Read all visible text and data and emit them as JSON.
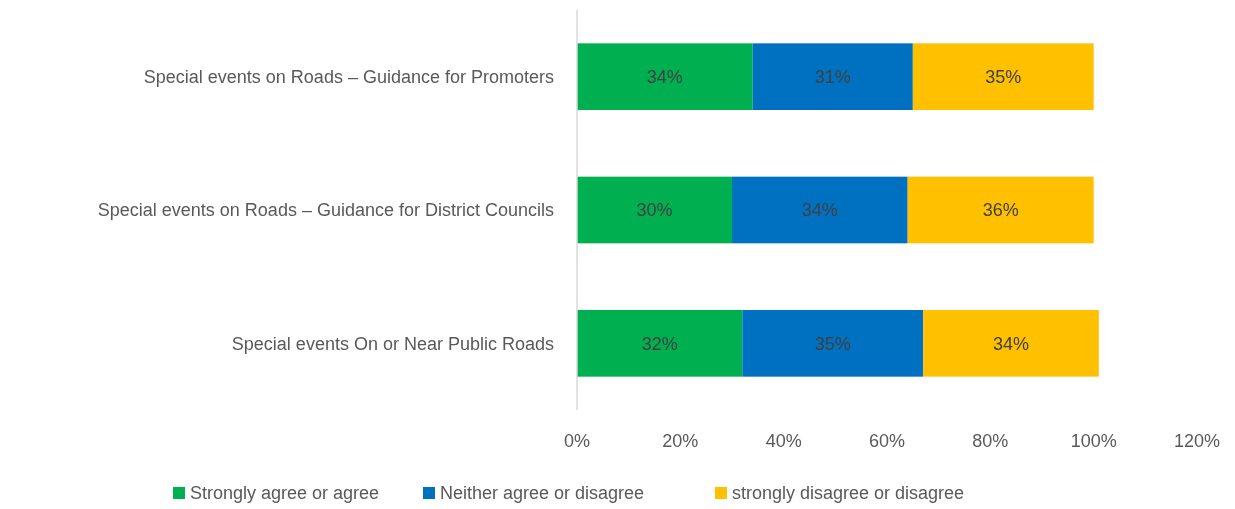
{
  "chart_data": {
    "type": "bar",
    "orientation": "horizontal",
    "stacked": true,
    "categories": [
      "Special events on Roads – Guidance for Promoters",
      "Special events on Roads – Guidance for District Councils",
      "Special events On or Near Public Roads"
    ],
    "series": [
      {
        "name": "Strongly agree or agree",
        "color": "#00b050",
        "values": [
          34,
          30,
          32
        ],
        "value_labels": [
          "34%",
          "30%",
          "32%"
        ]
      },
      {
        "name": "Neither agree or disagree",
        "color": "#0070c0",
        "values": [
          31,
          34,
          35
        ],
        "value_labels": [
          "31%",
          "34%",
          "35%"
        ]
      },
      {
        "name": "strongly disagree or disagree",
        "color": "#ffc000",
        "values": [
          35,
          36,
          34
        ],
        "value_labels": [
          "35%",
          "36%",
          "34%"
        ]
      }
    ],
    "xlim": [
      0,
      120
    ],
    "xticks": [
      {
        "value": 0,
        "label": "0%"
      },
      {
        "value": 20,
        "label": "20%"
      },
      {
        "value": 40,
        "label": "40%"
      },
      {
        "value": 60,
        "label": "60%"
      },
      {
        "value": 80,
        "label": "80%"
      },
      {
        "value": 100,
        "label": "100%"
      },
      {
        "value": 120,
        "label": "120%"
      }
    ],
    "grid": false,
    "legend": "bottom"
  }
}
